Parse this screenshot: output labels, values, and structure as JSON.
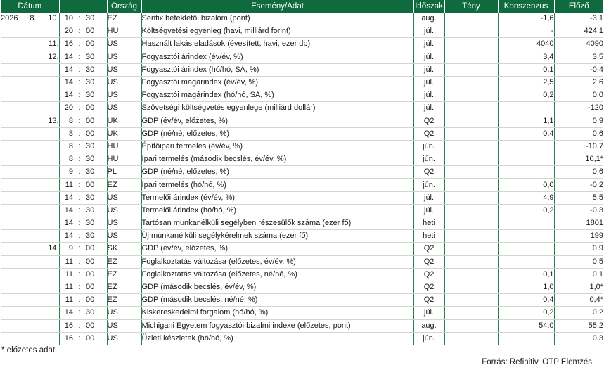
{
  "headers": {
    "date": "Dátum",
    "country": "Ország",
    "event": "Esemény/Adat",
    "period": "Időszak",
    "actual": "Tény",
    "consensus": "Konszenzus",
    "previous": "Előző"
  },
  "rows": [
    {
      "year": "2026",
      "month": "8.",
      "day": "10.",
      "hh": "10",
      "colon": ":",
      "mm": "30",
      "country": "EZ",
      "event": "Sentix befektetői bizalom (pont)",
      "period": "aug.",
      "actual": "",
      "consensus": "-1,6",
      "previous": "-3,1"
    },
    {
      "year": "",
      "month": "",
      "day": "",
      "hh": "20",
      "colon": ":",
      "mm": "00",
      "country": "HU",
      "event": "Költségvetési egyenleg (havi, milliárd forint)",
      "period": "júl.",
      "actual": "",
      "consensus": "-",
      "previous": "424,1"
    },
    {
      "year": "",
      "month": "",
      "day": "11.",
      "hh": "16",
      "colon": ":",
      "mm": "00",
      "country": "US",
      "event": "Használt lakás eladások (évesített, havi, ezer db)",
      "period": "júl.",
      "actual": "",
      "consensus": "4040",
      "previous": "4090"
    },
    {
      "year": "",
      "month": "",
      "day": "12.",
      "hh": "14",
      "colon": ":",
      "mm": "30",
      "country": "US",
      "event": "Fogyasztói árindex (év/év, %)",
      "period": "júl.",
      "actual": "",
      "consensus": "3,4",
      "previous": "3,5"
    },
    {
      "year": "",
      "month": "",
      "day": "",
      "hh": "14",
      "colon": ":",
      "mm": "30",
      "country": "US",
      "event": "Fogyasztói árindex (hó/hó, SA, %)",
      "period": "júl.",
      "actual": "",
      "consensus": "0,1",
      "previous": "-0,4"
    },
    {
      "year": "",
      "month": "",
      "day": "",
      "hh": "14",
      "colon": ":",
      "mm": "30",
      "country": "US",
      "event": "Fogyasztói magárindex (év/év, %)",
      "period": "júl.",
      "actual": "",
      "consensus": "2,5",
      "previous": "2,6"
    },
    {
      "year": "",
      "month": "",
      "day": "",
      "hh": "14",
      "colon": ":",
      "mm": "30",
      "country": "US",
      "event": "Fogyasztói magárindex (hó/hó, SA, %)",
      "period": "júl.",
      "actual": "",
      "consensus": "0,2",
      "previous": "0,0"
    },
    {
      "year": "",
      "month": "",
      "day": "",
      "hh": "20",
      "colon": ":",
      "mm": "00",
      "country": "US",
      "event": "Szövetségi költségvetés egyenlege (milliárd dollár)",
      "period": "júl.",
      "actual": "",
      "consensus": "",
      "previous": "-120"
    },
    {
      "year": "",
      "month": "",
      "day": "13.",
      "hh": "8",
      "colon": ":",
      "mm": "00",
      "country": "UK",
      "event": "GDP (év/év, előzetes, %)",
      "period": "Q2",
      "actual": "",
      "consensus": "1,1",
      "previous": "0,9"
    },
    {
      "year": "",
      "month": "",
      "day": "",
      "hh": "8",
      "colon": ":",
      "mm": "00",
      "country": "UK",
      "event": "GDP (né/né, előzetes, %)",
      "period": "Q2",
      "actual": "",
      "consensus": "0,4",
      "previous": "0,6"
    },
    {
      "year": "",
      "month": "",
      "day": "",
      "hh": "8",
      "colon": ":",
      "mm": "30",
      "country": "HU",
      "event": "Építőipari termelés (év/év, %)",
      "period": "jún.",
      "actual": "",
      "consensus": "",
      "previous": "-10,7"
    },
    {
      "year": "",
      "month": "",
      "day": "",
      "hh": "8",
      "colon": ":",
      "mm": "30",
      "country": "HU",
      "event": "Ipari termelés (második becslés, év/év, %)",
      "period": "jún.",
      "actual": "",
      "consensus": "",
      "previous": "10,1*"
    },
    {
      "year": "",
      "month": "",
      "day": "",
      "hh": "9",
      "colon": ":",
      "mm": "30",
      "country": "PL",
      "event": "GDP (né/né, előzetes, %)",
      "period": "Q2",
      "actual": "",
      "consensus": "",
      "previous": "0,6"
    },
    {
      "year": "",
      "month": "",
      "day": "",
      "hh": "11",
      "colon": ":",
      "mm": "00",
      "country": "EZ",
      "event": "Ipari termelés (hó/hó, %)",
      "period": "jún.",
      "actual": "",
      "consensus": "0,0",
      "previous": "-0,2"
    },
    {
      "year": "",
      "month": "",
      "day": "",
      "hh": "14",
      "colon": ":",
      "mm": "30",
      "country": "US",
      "event": "Termelői árindex (év/év, %)",
      "period": "júl.",
      "actual": "",
      "consensus": "4,9",
      "previous": "5,5"
    },
    {
      "year": "",
      "month": "",
      "day": "",
      "hh": "14",
      "colon": ":",
      "mm": "30",
      "country": "US",
      "event": "Termelői árindex (hó/hó, %)",
      "period": "júl.",
      "actual": "",
      "consensus": "0,2",
      "previous": "-0,3"
    },
    {
      "year": "",
      "month": "",
      "day": "",
      "hh": "14",
      "colon": ":",
      "mm": "30",
      "country": "US",
      "event": "Tartósan munkanélküli segélyben részesülők száma (ezer fő)",
      "period": "heti",
      "actual": "",
      "consensus": "",
      "previous": "1801"
    },
    {
      "year": "",
      "month": "",
      "day": "",
      "hh": "14",
      "colon": ":",
      "mm": "30",
      "country": "US",
      "event": "Új munkanélküli segélykérelmek száma (ezer fő)",
      "period": "heti",
      "actual": "",
      "consensus": "",
      "previous": "199"
    },
    {
      "year": "",
      "month": "",
      "day": "14.",
      "hh": "9",
      "colon": ":",
      "mm": "00",
      "country": "SK",
      "event": "GDP (év/év, előzetes, %)",
      "period": "Q2",
      "actual": "",
      "consensus": "",
      "previous": "0,9"
    },
    {
      "year": "",
      "month": "",
      "day": "",
      "hh": "11",
      "colon": ":",
      "mm": "00",
      "country": "EZ",
      "event": "Foglalkoztatás változása (előzetes, év/év, %)",
      "period": "Q2",
      "actual": "",
      "consensus": "",
      "previous": "0,5"
    },
    {
      "year": "",
      "month": "",
      "day": "",
      "hh": "11",
      "colon": ":",
      "mm": "00",
      "country": "EZ",
      "event": "Foglalkoztatás változása (előzetes, né/né, %)",
      "period": "Q2",
      "actual": "",
      "consensus": "0,1",
      "previous": "0,1"
    },
    {
      "year": "",
      "month": "",
      "day": "",
      "hh": "11",
      "colon": ":",
      "mm": "00",
      "country": "EZ",
      "event": "GDP (második becslés, év/év, %)",
      "period": "Q2",
      "actual": "",
      "consensus": "1,0",
      "previous": "1,0*"
    },
    {
      "year": "",
      "month": "",
      "day": "",
      "hh": "11",
      "colon": ":",
      "mm": "00",
      "country": "EZ",
      "event": "GDP (második becslés, né/né, %)",
      "period": "Q2",
      "actual": "",
      "consensus": "0,4",
      "previous": "0,4*"
    },
    {
      "year": "",
      "month": "",
      "day": "",
      "hh": "14",
      "colon": ":",
      "mm": "30",
      "country": "US",
      "event": "Kiskereskedelmi forgalom (hó/hó, %)",
      "period": "júl.",
      "actual": "",
      "consensus": "0,2",
      "previous": "0,2"
    },
    {
      "year": "",
      "month": "",
      "day": "",
      "hh": "16",
      "colon": ":",
      "mm": "00",
      "country": "US",
      "event": "Michigani Egyetem fogyasztói bizalmi indexe (előzetes, pont)",
      "period": "aug.",
      "actual": "",
      "consensus": "54,0",
      "previous": "55,2"
    },
    {
      "year": "",
      "month": "",
      "day": "",
      "hh": "16",
      "colon": ":",
      "mm": "00",
      "country": "US",
      "event": "Üzleti készletek (hó/hó, %)",
      "period": "jún.",
      "actual": "",
      "consensus": "",
      "previous": "0,3"
    }
  ],
  "footnote": "* előzetes adat",
  "source": "Forrás: Refinitiv, OTP Elemzés"
}
